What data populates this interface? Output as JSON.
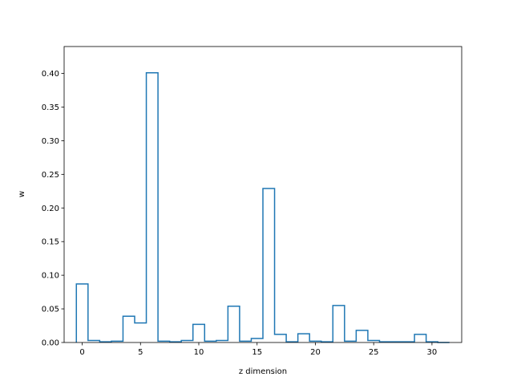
{
  "chart_data": {
    "type": "line",
    "style": "step-histogram",
    "title": "",
    "xlabel": "z dimension",
    "ylabel": "w",
    "xlim": [
      -1.55,
      32.55
    ],
    "ylim": [
      0,
      0.44
    ],
    "xticks": [
      0,
      5,
      10,
      15,
      20,
      25,
      30
    ],
    "yticks": [
      0.0,
      0.05,
      0.1,
      0.15,
      0.2,
      0.25,
      0.3,
      0.35,
      0.4
    ],
    "ytick_labels": [
      "0.00",
      "0.05",
      "0.10",
      "0.15",
      "0.20",
      "0.25",
      "0.30",
      "0.35",
      "0.40"
    ],
    "grid": false,
    "line_color": "#1f77b4",
    "series": [
      {
        "x": [
          0,
          1,
          2,
          3,
          4,
          5,
          6,
          7,
          8,
          9,
          10,
          11,
          12,
          13,
          14,
          15,
          16,
          17,
          18,
          19,
          20,
          21,
          22,
          23,
          24,
          25,
          26,
          27,
          28,
          29,
          30,
          31
        ],
        "values": [
          0.087,
          0.003,
          0.001,
          0.002,
          0.039,
          0.029,
          0.401,
          0.002,
          0.001,
          0.003,
          0.027,
          0.002,
          0.003,
          0.054,
          0.002,
          0.006,
          0.229,
          0.012,
          0.001,
          0.013,
          0.002,
          0.001,
          0.055,
          0.002,
          0.018,
          0.003,
          0.001,
          0.001,
          0.001,
          0.012,
          0.001,
          0.0
        ]
      }
    ]
  }
}
